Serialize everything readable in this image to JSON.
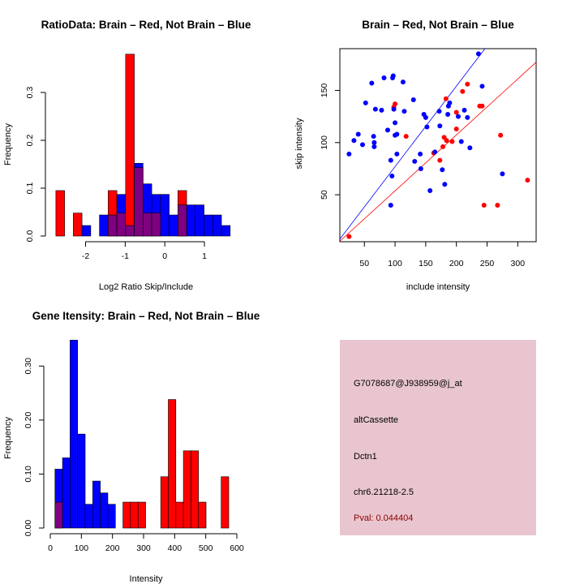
{
  "chart_data": [
    {
      "type": "histogram-overlay",
      "title": "RatioData: Brain – Red, Not Brain – Blue",
      "xlabel": "Log2 Ratio Skip/Include",
      "ylabel": "Frequency",
      "xlim": [
        -2.85,
        1.9
      ],
      "ylim": [
        0,
        0.4
      ],
      "xticks": [
        "-2",
        "-1",
        "0",
        "1"
      ],
      "xtick_values": [
        -2,
        -1,
        0,
        1
      ],
      "yticks": [
        "0.0",
        "0.1",
        "0.2",
        "0.3"
      ],
      "ytick_values": [
        0,
        0.1,
        0.2,
        0.3
      ],
      "bin_start": -2.75,
      "bin_width": 0.22,
      "series": [
        {
          "name": "Brain",
          "color": "#ff0000",
          "values": [
            0.095,
            0,
            0.048,
            0,
            0,
            0,
            0.095,
            0.048,
            0.38,
            0.143,
            0.048,
            0.048,
            0,
            0,
            0.095,
            0,
            0,
            0,
            0,
            0,
            0
          ]
        },
        {
          "name": "Not Brain",
          "color": "#0000ff",
          "values": [
            0,
            0,
            0,
            0.022,
            0,
            0.044,
            0.044,
            0.087,
            0.022,
            0.152,
            0.109,
            0.087,
            0.087,
            0.044,
            0.065,
            0.065,
            0.065,
            0.044,
            0.044,
            0.022,
            0
          ]
        }
      ],
      "overlap_color": "#7f0080"
    },
    {
      "type": "scatter",
      "title": "Brain – Red, Not Brain – Blue",
      "xlabel": "include intensity",
      "ylabel": "skip intensity",
      "xlim": [
        10,
        330
      ],
      "ylim": [
        5,
        190
      ],
      "xticks": [
        "50",
        "100",
        "150",
        "200",
        "250",
        "300"
      ],
      "xtick_values": [
        50,
        100,
        150,
        200,
        250,
        300
      ],
      "yticks": [
        "50",
        "100",
        "150"
      ],
      "ytick_values": [
        50,
        100,
        150
      ],
      "lines": [
        {
          "name": "blue-line",
          "color": "#0000ff",
          "from": [
            10,
            7.5
          ],
          "to": [
            253,
            195
          ]
        },
        {
          "name": "red-line",
          "color": "#ff0000",
          "from": [
            10,
            5.5
          ],
          "to": [
            330,
            177
          ]
        }
      ],
      "series": [
        {
          "name": "Brain",
          "color": "#ff0000",
          "points": [
            [
              25,
              10
            ],
            [
              100,
              137
            ],
            [
              98,
              134
            ],
            [
              118,
              106
            ],
            [
              163,
              90
            ],
            [
              173,
              83
            ],
            [
              178,
              96
            ],
            [
              180,
              105
            ],
            [
              184,
              102
            ],
            [
              183,
              142
            ],
            [
              193,
              101
            ],
            [
              200,
              113
            ],
            [
              200,
              129
            ],
            [
              210,
              149
            ],
            [
              218,
              156
            ],
            [
              238,
              135
            ],
            [
              242,
              135
            ],
            [
              245,
              40
            ],
            [
              267,
              40
            ],
            [
              272,
              107
            ],
            [
              316,
              64
            ]
          ]
        },
        {
          "name": "Not Brain",
          "color": "#0000ff",
          "points": [
            [
              25,
              89
            ],
            [
              33,
              102
            ],
            [
              40,
              108
            ],
            [
              47,
              98
            ],
            [
              52,
              138
            ],
            [
              62,
              157
            ],
            [
              65,
              106
            ],
            [
              66,
              96
            ],
            [
              66,
              100
            ],
            [
              68,
              132
            ],
            [
              78,
              131
            ],
            [
              82,
              162
            ],
            [
              88,
              112
            ],
            [
              93,
              40
            ],
            [
              93,
              83
            ],
            [
              95,
              68
            ],
            [
              96,
              162
            ],
            [
              97,
              164
            ],
            [
              98,
              132
            ],
            [
              100,
              119
            ],
            [
              100,
              107
            ],
            [
              103,
              108
            ],
            [
              103,
              89
            ],
            [
              113,
              158
            ],
            [
              115,
              130
            ],
            [
              130,
              141
            ],
            [
              132,
              82
            ],
            [
              141,
              89
            ],
            [
              142,
              75
            ],
            [
              147,
              127
            ],
            [
              150,
              124
            ],
            [
              152,
              115
            ],
            [
              157,
              54
            ],
            [
              165,
              91
            ],
            [
              172,
              130
            ],
            [
              173,
              116
            ],
            [
              177,
              74
            ],
            [
              181,
              60
            ],
            [
              186,
              127
            ],
            [
              187,
              135
            ],
            [
              189,
              138
            ],
            [
              203,
              125
            ],
            [
              208,
              101
            ],
            [
              213,
              131
            ],
            [
              218,
              124
            ],
            [
              222,
              95
            ],
            [
              236,
              185
            ],
            [
              242,
              154
            ],
            [
              275,
              70
            ]
          ]
        }
      ]
    },
    {
      "type": "histogram-overlay",
      "title": "Gene Itensity: Brain – Red, Not Brain – Blue",
      "xlabel": "Intensity",
      "ylabel": "Frequency",
      "xlim": [
        0,
        600
      ],
      "ylim": [
        0,
        0.35
      ],
      "xticks": [
        "0",
        "100",
        "200",
        "300",
        "400",
        "500",
        "600"
      ],
      "xtick_values": [
        0,
        100,
        200,
        300,
        400,
        500,
        600
      ],
      "yticks": [
        "0.00",
        "0.10",
        "0.20",
        "0.30"
      ],
      "ytick_values": [
        0,
        0.1,
        0.2,
        0.3
      ],
      "bin_start": 15,
      "bin_width": 24.3,
      "series": [
        {
          "name": "Brain",
          "color": "#ff0000",
          "values": [
            0.048,
            0,
            0,
            0,
            0,
            0,
            0,
            0,
            0,
            0.048,
            0.048,
            0.048,
            0,
            0,
            0.095,
            0.238,
            0.048,
            0.143,
            0.143,
            0.048,
            0,
            0,
            0.095
          ]
        },
        {
          "name": "Not Brain",
          "color": "#0000ff",
          "values": [
            0.109,
            0.13,
            0.348,
            0.174,
            0.044,
            0.087,
            0.065,
            0.044,
            0,
            0,
            0,
            0,
            0,
            0,
            0,
            0,
            0,
            0,
            0,
            0,
            0,
            0,
            0
          ]
        }
      ],
      "overlap_color": "#7f0080"
    }
  ],
  "info_panel": {
    "background": "#e9c6cf",
    "probe_id": "G7078687@J938959@j_at",
    "event_type": "altCassette",
    "gene": "Dctn1",
    "location": "chr6.21218-2.5",
    "pval": "Pval: 0.044404",
    "pval_color": "#8b0000"
  }
}
